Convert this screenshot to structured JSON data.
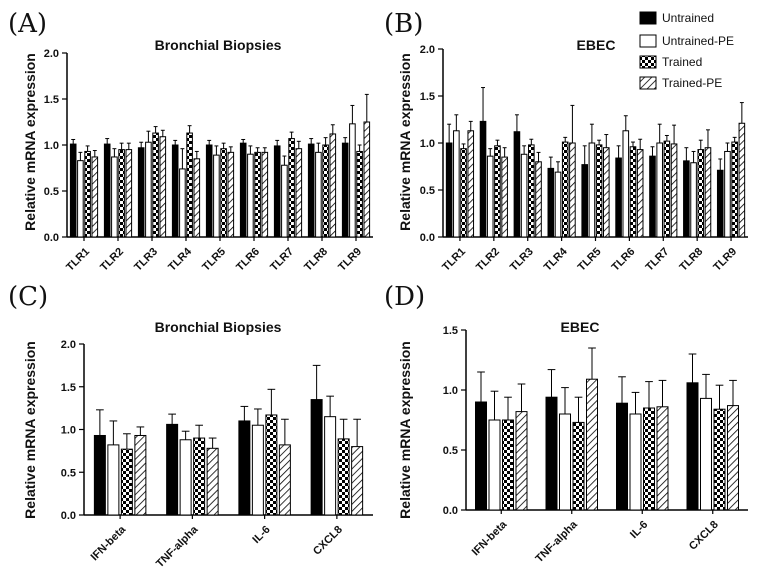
{
  "panel_letters": [
    "(A)",
    "(B)",
    "(C)",
    "(D)"
  ],
  "legend": {
    "entries": [
      "Untrained",
      "Untrained-PE",
      "Trained",
      "Trained-PE"
    ],
    "placement": "top-right"
  },
  "colors": {
    "bar_stroke": "#000000",
    "untrained_fill": "#000000",
    "untrained_pe_fill": "#ffffff"
  },
  "chart_data": [
    {
      "type": "bar",
      "title": "Bronchial Biopsies",
      "ylabel": "Relative mRNA expression",
      "xlabel": "",
      "ylim": [
        0,
        2.0
      ],
      "yticks": [
        "0.0",
        "0.5",
        "1.0",
        "1.5",
        "2.0"
      ],
      "categories": [
        "TLR1",
        "TLR2",
        "TLR3",
        "TLR4",
        "TLR5",
        "TLR6",
        "TLR7",
        "TLR8",
        "TLR9"
      ],
      "series": [
        {
          "name": "Untrained",
          "values": [
            1.01,
            1.01,
            0.97,
            1.0,
            1.0,
            1.02,
            0.99,
            1.01,
            1.02
          ],
          "errors": [
            0.05,
            0.06,
            0.06,
            0.05,
            0.05,
            0.04,
            0.06,
            0.06,
            0.06
          ]
        },
        {
          "name": "Untrained-PE",
          "values": [
            0.83,
            0.87,
            1.03,
            0.74,
            0.89,
            0.9,
            0.78,
            0.92,
            1.23
          ],
          "errors": [
            0.09,
            0.09,
            0.12,
            0.22,
            0.1,
            0.09,
            0.1,
            0.1,
            0.2
          ]
        },
        {
          "name": "Trained",
          "values": [
            0.93,
            0.95,
            1.13,
            1.13,
            0.96,
            0.92,
            1.07,
            1.0,
            0.93
          ],
          "errors": [
            0.06,
            0.07,
            0.07,
            0.08,
            0.06,
            0.05,
            0.07,
            0.08,
            0.07
          ]
        },
        {
          "name": "Trained-PE",
          "values": [
            0.87,
            0.95,
            1.09,
            0.85,
            0.92,
            0.92,
            0.96,
            1.12,
            1.25
          ],
          "errors": [
            0.07,
            0.07,
            0.07,
            0.08,
            0.06,
            0.05,
            0.08,
            0.1,
            0.3
          ]
        }
      ]
    },
    {
      "type": "bar",
      "title": "EBEC",
      "ylabel": "Relative mRNA expression",
      "xlabel": "",
      "ylim": [
        0,
        2.0
      ],
      "yticks": [
        "0.0",
        "0.5",
        "1.0",
        "1.5",
        "2.0"
      ],
      "categories": [
        "TLR1",
        "TLR2",
        "TLR3",
        "TLR4",
        "TLR5",
        "TLR6",
        "TLR7",
        "TLR8",
        "TLR9"
      ],
      "series": [
        {
          "name": "Untrained",
          "values": [
            1.0,
            1.23,
            1.12,
            0.73,
            0.77,
            0.84,
            0.86,
            0.81,
            0.71
          ],
          "errors": [
            0.2,
            0.36,
            0.18,
            0.12,
            0.2,
            0.13,
            0.1,
            0.14,
            0.12
          ]
        },
        {
          "name": "Untrained-PE",
          "values": [
            1.13,
            0.86,
            0.88,
            0.69,
            1.0,
            1.13,
            1.0,
            0.79,
            0.91
          ],
          "errors": [
            0.17,
            0.08,
            0.09,
            0.11,
            0.2,
            0.16,
            0.2,
            0.12,
            0.09
          ]
        },
        {
          "name": "Trained",
          "values": [
            0.94,
            0.97,
            0.98,
            1.01,
            0.98,
            0.96,
            1.02,
            0.93,
            1.01
          ],
          "errors": [
            0.05,
            0.06,
            0.06,
            0.05,
            0.05,
            0.05,
            0.06,
            0.1,
            0.05
          ]
        },
        {
          "name": "Trained-PE",
          "values": [
            1.13,
            0.85,
            0.8,
            1.0,
            0.95,
            0.93,
            0.99,
            0.95,
            1.21
          ],
          "errors": [
            0.1,
            0.1,
            0.1,
            0.4,
            0.14,
            0.11,
            0.2,
            0.19,
            0.22
          ]
        }
      ]
    },
    {
      "type": "bar",
      "title": "Bronchial Biopsies",
      "ylabel": "Relative mRNA expression",
      "xlabel": "",
      "ylim": [
        0,
        2.0
      ],
      "yticks": [
        "0.0",
        "0.5",
        "1.0",
        "1.5",
        "2.0"
      ],
      "categories": [
        "IFN-beta",
        "TNF-alpha",
        "IL-6",
        "CXCL8"
      ],
      "series": [
        {
          "name": "Untrained",
          "values": [
            0.93,
            1.06,
            1.1,
            1.35
          ],
          "errors": [
            0.3,
            0.12,
            0.17,
            0.4
          ]
        },
        {
          "name": "Untrained-PE",
          "values": [
            0.82,
            0.88,
            1.05,
            1.15
          ],
          "errors": [
            0.28,
            0.1,
            0.19,
            0.24
          ]
        },
        {
          "name": "Trained",
          "values": [
            0.77,
            0.9,
            1.17,
            0.89
          ],
          "errors": [
            0.18,
            0.15,
            0.3,
            0.23
          ]
        },
        {
          "name": "Trained-PE",
          "values": [
            0.93,
            0.78,
            0.82,
            0.8
          ],
          "errors": [
            0.1,
            0.12,
            0.3,
            0.32
          ]
        }
      ]
    },
    {
      "type": "bar",
      "title": "EBEC",
      "ylabel": "Relative mRNA expression",
      "xlabel": "",
      "ylim": [
        0,
        1.5
      ],
      "yticks": [
        "0.0",
        "0.5",
        "1.0",
        "1.5"
      ],
      "categories": [
        "IFN-beta",
        "TNF-alpha",
        "IL-6",
        "CXCL8"
      ],
      "series": [
        {
          "name": "Untrained",
          "values": [
            0.9,
            0.94,
            0.89,
            1.06
          ],
          "errors": [
            0.25,
            0.23,
            0.22,
            0.24
          ]
        },
        {
          "name": "Untrained-PE",
          "values": [
            0.75,
            0.8,
            0.8,
            0.93
          ],
          "errors": [
            0.24,
            0.22,
            0.18,
            0.2
          ]
        },
        {
          "name": "Trained",
          "values": [
            0.75,
            0.73,
            0.85,
            0.84
          ],
          "errors": [
            0.19,
            0.21,
            0.22,
            0.2
          ]
        },
        {
          "name": "Trained-PE",
          "values": [
            0.82,
            1.09,
            0.86,
            0.87
          ],
          "errors": [
            0.23,
            0.26,
            0.22,
            0.21
          ]
        }
      ]
    }
  ]
}
